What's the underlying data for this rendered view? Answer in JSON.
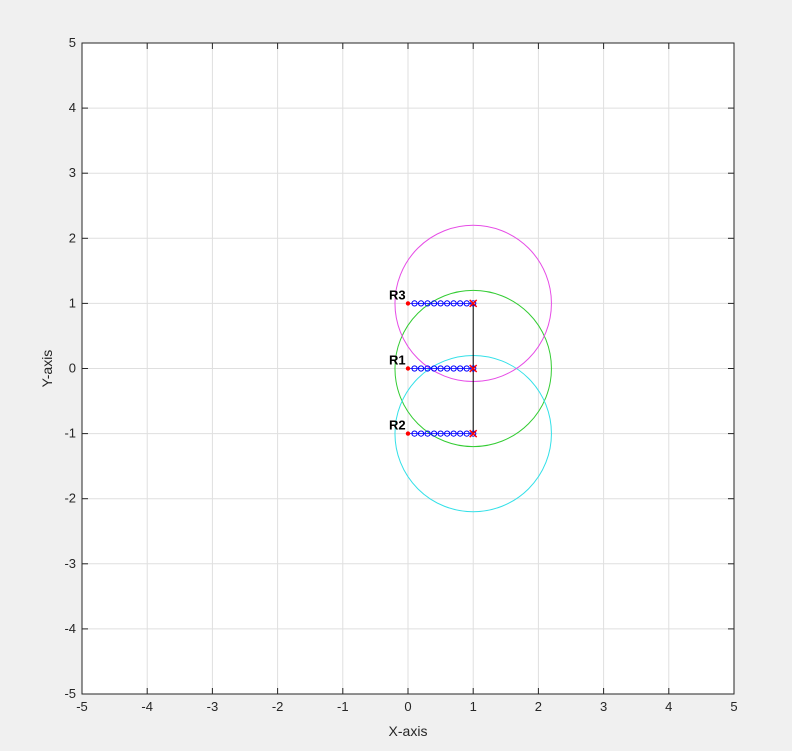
{
  "chart_data": {
    "type": "scatter",
    "title": "",
    "xlabel": "X-axis",
    "ylabel": "Y-axis",
    "xlim": [
      -5,
      5
    ],
    "ylim": [
      -5,
      5
    ],
    "xticks": [
      -5,
      -4,
      -3,
      -2,
      -1,
      0,
      1,
      2,
      3,
      4,
      5
    ],
    "yticks": [
      -5,
      -4,
      -3,
      -2,
      -1,
      0,
      1,
      2,
      3,
      4,
      5
    ],
    "grid": true,
    "colors": {
      "background": "#ffffff",
      "figure": "#f0f0f0",
      "grid": "#dfdfdf",
      "axis": "#262626",
      "trail": "#0000ff",
      "current": "#ff0000",
      "link": "#000000"
    },
    "robots": [
      {
        "label": "R1",
        "start": [
          0,
          0
        ],
        "trail_x": [
          0.1,
          0.2,
          0.3,
          0.4,
          0.5,
          0.6,
          0.7,
          0.8,
          0.9,
          1.0
        ],
        "trail_y": [
          0,
          0,
          0,
          0,
          0,
          0,
          0,
          0,
          0,
          0
        ],
        "circle": {
          "center": [
            1,
            0
          ],
          "radius": 1.2,
          "color": "#33cc33"
        }
      },
      {
        "label": "R2",
        "start": [
          0,
          -1
        ],
        "trail_x": [
          0.1,
          0.2,
          0.3,
          0.4,
          0.5,
          0.6,
          0.7,
          0.8,
          0.9,
          1.0
        ],
        "trail_y": [
          -1,
          -1,
          -1,
          -1,
          -1,
          -1,
          -1,
          -1,
          -1,
          -1
        ],
        "circle": {
          "center": [
            1,
            -1
          ],
          "radius": 1.2,
          "color": "#33e0e8"
        }
      },
      {
        "label": "R3",
        "start": [
          0,
          1
        ],
        "trail_x": [
          0.1,
          0.2,
          0.3,
          0.4,
          0.5,
          0.6,
          0.7,
          0.8,
          0.9,
          1.0
        ],
        "trail_y": [
          1,
          1,
          1,
          1,
          1,
          1,
          1,
          1,
          1,
          1
        ],
        "circle": {
          "center": [
            1,
            1
          ],
          "radius": 1.2,
          "color": "#e64ce6"
        }
      }
    ],
    "links": [
      {
        "from": [
          1,
          1
        ],
        "to": [
          1,
          0
        ]
      },
      {
        "from": [
          1,
          0
        ],
        "to": [
          1,
          -1
        ]
      }
    ]
  }
}
